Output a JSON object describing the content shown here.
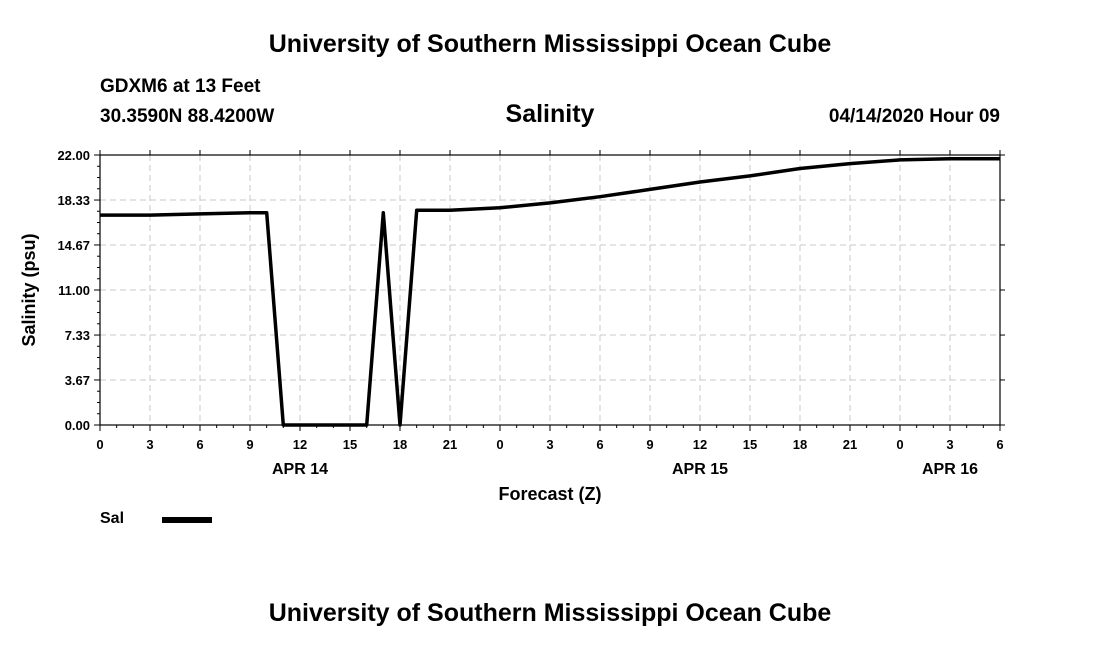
{
  "header": {
    "title": "University of Southern Mississippi Ocean Cube",
    "station": "GDXM6 at 13 Feet",
    "coordinates": "30.3590N 88.4200W",
    "variable": "Salinity",
    "datetime": "04/14/2020 Hour 09"
  },
  "footer": {
    "title": "University of Southern Mississippi Ocean Cube"
  },
  "legend": {
    "label": "Sal"
  },
  "chart_data": {
    "type": "line",
    "title": "Salinity",
    "xlabel": "Forecast (Z)",
    "ylabel": "Salinity (psu)",
    "ylim": [
      0,
      22
    ],
    "xlim": [
      0,
      54
    ],
    "x_units": "hours from APR 14 00Z",
    "y_ticks": [
      "0.00",
      "3.67",
      "7.33",
      "11.00",
      "14.67",
      "18.33",
      "22.00"
    ],
    "y_tick_values": [
      0,
      3.67,
      7.33,
      11.0,
      14.67,
      18.33,
      22.0
    ],
    "x_ticks": [
      "0",
      "3",
      "6",
      "9",
      "12",
      "15",
      "18",
      "21",
      "0",
      "3",
      "6",
      "9",
      "12",
      "15",
      "18",
      "21",
      "0",
      "3",
      "6"
    ],
    "x_tick_values": [
      0,
      3,
      6,
      9,
      12,
      15,
      18,
      21,
      24,
      27,
      30,
      33,
      36,
      39,
      42,
      45,
      48,
      51,
      54
    ],
    "day_labels": [
      {
        "label": "APR 14",
        "x": 12
      },
      {
        "label": "APR 15",
        "x": 36
      },
      {
        "label": "APR 16",
        "x": 51
      }
    ],
    "grid": true,
    "line_color": "#000000",
    "series": [
      {
        "name": "Sal",
        "x": [
          0,
          3,
          6,
          9,
          10,
          11,
          12,
          15,
          16,
          17,
          18,
          19,
          21,
          24,
          27,
          30,
          33,
          36,
          39,
          42,
          45,
          48,
          51,
          54
        ],
        "values": [
          17.1,
          17.1,
          17.2,
          17.3,
          17.3,
          0,
          0,
          0,
          0,
          17.3,
          0,
          17.5,
          17.5,
          17.7,
          18.1,
          18.6,
          19.2,
          19.8,
          20.3,
          20.9,
          21.3,
          21.6,
          21.7,
          21.7
        ]
      }
    ]
  }
}
